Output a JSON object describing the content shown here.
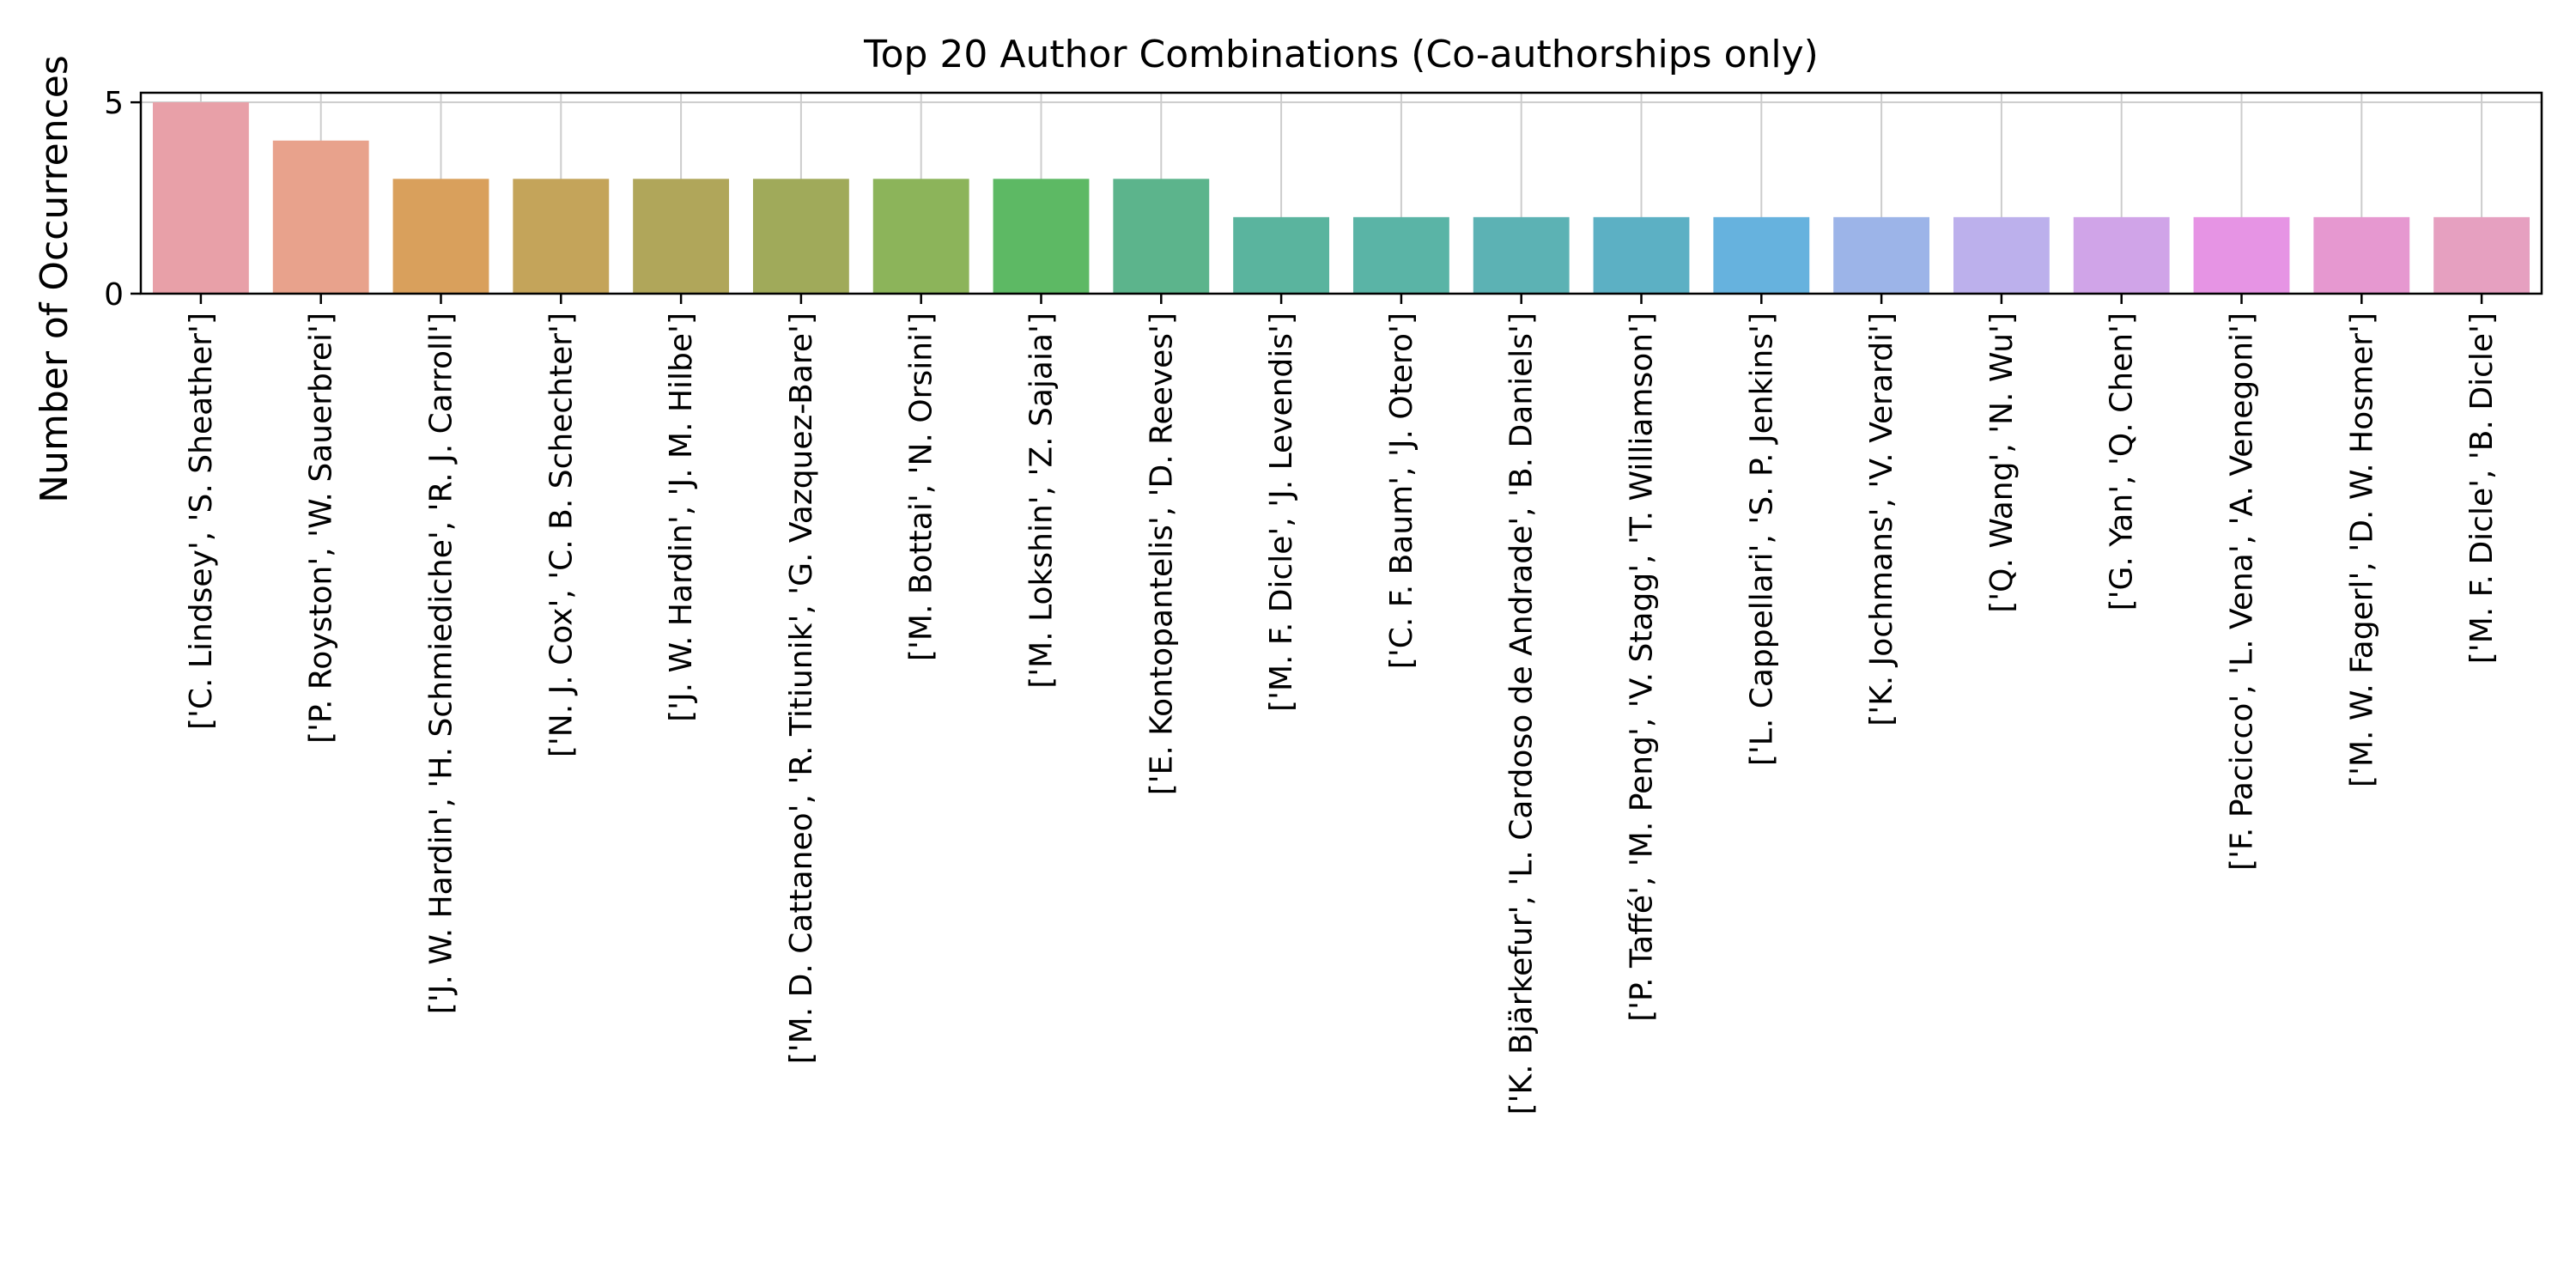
{
  "chart_data": {
    "type": "bar",
    "title": "Top 20 Author Combinations (Co-authorships only)",
    "xlabel": "",
    "ylabel": "Number of Occurrences",
    "ylim": [
      0,
      5.25
    ],
    "yticks": [
      0,
      5
    ],
    "grid": true,
    "categories": [
      "['C. Lindsey', 'S. Sheather']",
      "['P. Royston', 'W. Sauerbrei']",
      "['J. W. Hardin', 'H. Schmiediche', 'R. J. Carroll']",
      "['N. J. Cox', 'C. B. Schechter']",
      "['J. W. Hardin', 'J. M. Hilbe']",
      "['M. D. Cattaneo', 'R. Titiunik', 'G. Vazquez-Bare']",
      "['M. Bottai', 'N. Orsini']",
      "['M. Lokshin', 'Z. Sajaia']",
      "['E. Kontopantelis', 'D. Reeves']",
      "['M. F. Dicle', 'J. Levendis']",
      "['C. F. Baum', 'J. Otero']",
      "['K. Bjärkefur', 'L. Cardoso de Andrade', 'B. Daniels']",
      "['P. Taffé', 'M. Peng', 'V. Stagg', 'T. Williamson']",
      "['L. Cappellari', 'S. P. Jenkins']",
      "['K. Jochmans', 'V. Verardi']",
      "['Q. Wang', 'N. Wu']",
      "['G. Yan', 'Q. Chen']",
      "['F. Pacicco', 'L. Vena', 'A. Venegoni']",
      "['M. W. Fagerl', 'D. W. Hosmer']",
      "['M. F. Dicle', 'B. Dicle']"
    ],
    "values": [
      5,
      4,
      3,
      3,
      3,
      3,
      3,
      3,
      3,
      2,
      2,
      2,
      2,
      2,
      2,
      2,
      2,
      2,
      2,
      2
    ],
    "colors": [
      "#e8a0a8",
      "#e8a28c",
      "#d9a05c",
      "#c4a45a",
      "#b0a65a",
      "#a0aa5a",
      "#8cb45a",
      "#5db964",
      "#5cb48c",
      "#5ab49e",
      "#5ab4a6",
      "#5cb2b4",
      "#5cb0c4",
      "#66b2de",
      "#9cb4e8",
      "#bcb0ec",
      "#d0a4e8",
      "#e694e4",
      "#e698d0",
      "#e6a0c0"
    ]
  }
}
